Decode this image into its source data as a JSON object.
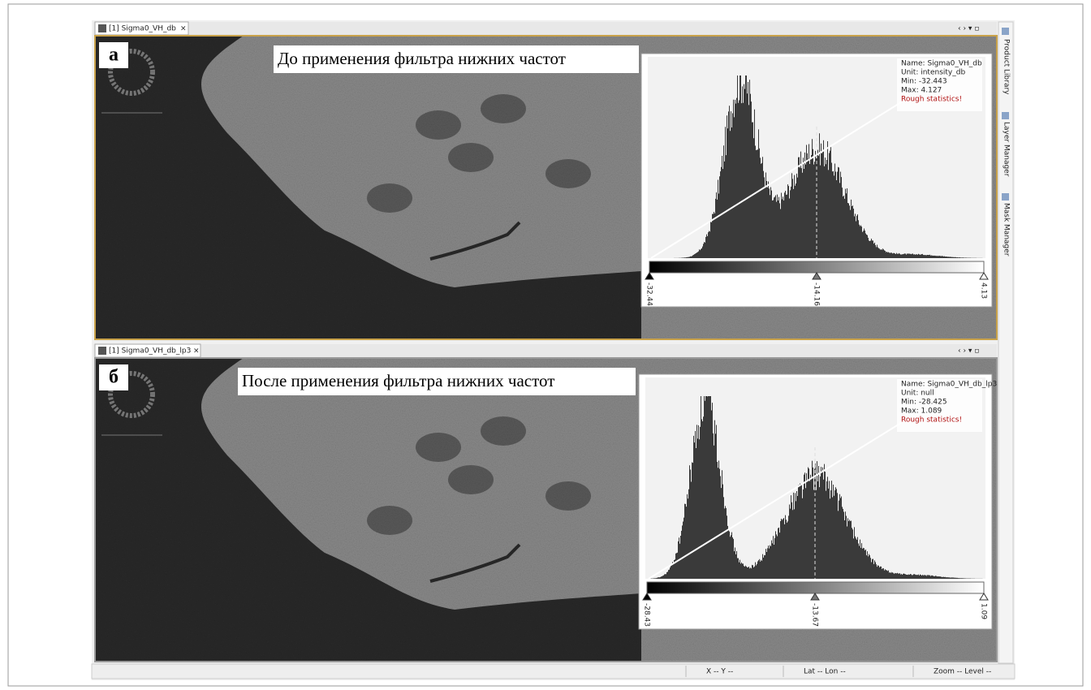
{
  "window": {
    "side_tabs": [
      "Product Library",
      "Layer Manager",
      "Mask Manager"
    ],
    "status_bar": [
      "X   -- Y   --",
      "Lat   -- Lon   --",
      "Zoom -- Level --"
    ]
  },
  "panels": [
    {
      "tab": "[1] Sigma0_VH_db",
      "label": "а",
      "caption": "До применения фильтра нижних частот",
      "info": [
        "Name: Sigma0_VH_db",
        "Unit: intensity_db",
        "Min: -32.443",
        "Max: 4.127",
        "Rough statistics!"
      ],
      "slider_labels": [
        "-32.44",
        "-14.16",
        "4.13"
      ]
    },
    {
      "tab": "[1] Sigma0_VH_db_lp3",
      "label": "б",
      "caption": "После применения фильтра нижних частот",
      "info": [
        "Name: Sigma0_VH_db_lp3",
        "Unit: null",
        "Min: -28.425",
        "Max: 1.089",
        "Rough statistics!"
      ],
      "slider_labels": [
        "-28.43",
        "-13.67",
        "1.09"
      ]
    }
  ]
}
